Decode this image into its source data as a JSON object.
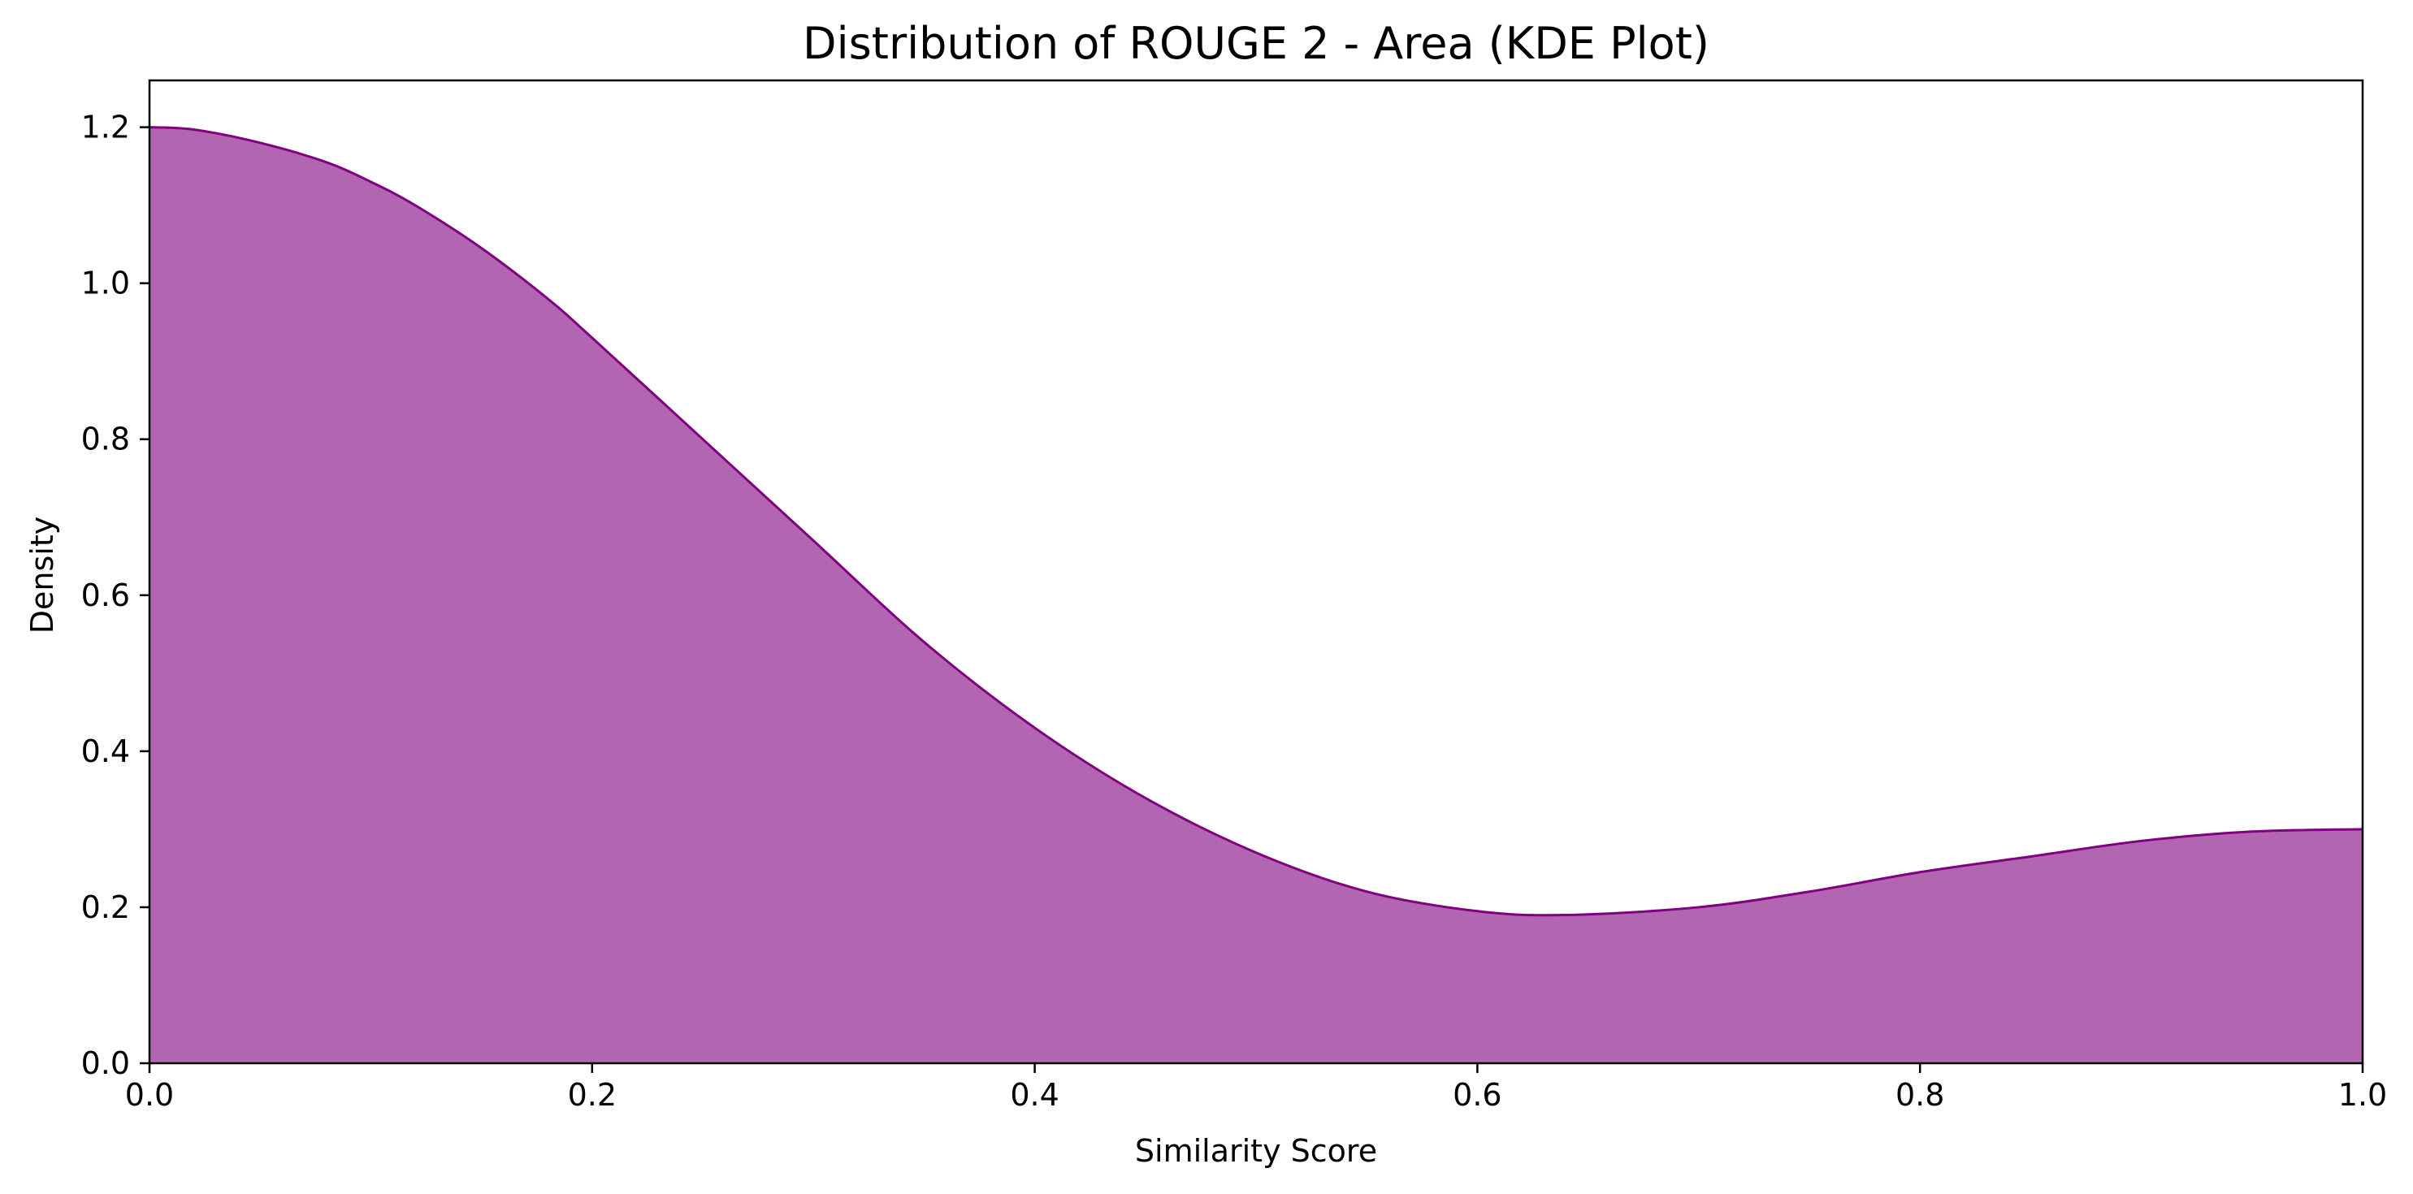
{
  "chart_data": {
    "type": "area",
    "title": "Distribution of ROUGE 2 - Area (KDE Plot)",
    "xlabel": "Similarity Score",
    "ylabel": "Density",
    "xlim": [
      0.0,
      1.0
    ],
    "ylim": [
      0.0,
      1.26
    ],
    "x_ticks": [
      "0.0",
      "0.2",
      "0.4",
      "0.6",
      "0.8",
      "1.0"
    ],
    "y_ticks": [
      "0.0",
      "0.2",
      "0.4",
      "0.6",
      "0.8",
      "1.0",
      "1.2"
    ],
    "grid": false,
    "legend": "none",
    "colors": {
      "fill": "#b266b2",
      "line": "#800080"
    },
    "series": [
      {
        "x": [
          0.0,
          0.02,
          0.05,
          0.08,
          0.1,
          0.12,
          0.15,
          0.18,
          0.2,
          0.25,
          0.3,
          0.35,
          0.4,
          0.45,
          0.5,
          0.55,
          0.6,
          0.64,
          0.7,
          0.75,
          0.8,
          0.85,
          0.9,
          0.95,
          1.0
        ],
        "values": [
          1.2,
          1.197,
          1.18,
          1.155,
          1.13,
          1.1,
          1.045,
          0.98,
          0.93,
          0.8,
          0.67,
          0.54,
          0.43,
          0.34,
          0.27,
          0.22,
          0.195,
          0.19,
          0.2,
          0.22,
          0.245,
          0.265,
          0.285,
          0.297,
          0.3
        ]
      }
    ]
  }
}
